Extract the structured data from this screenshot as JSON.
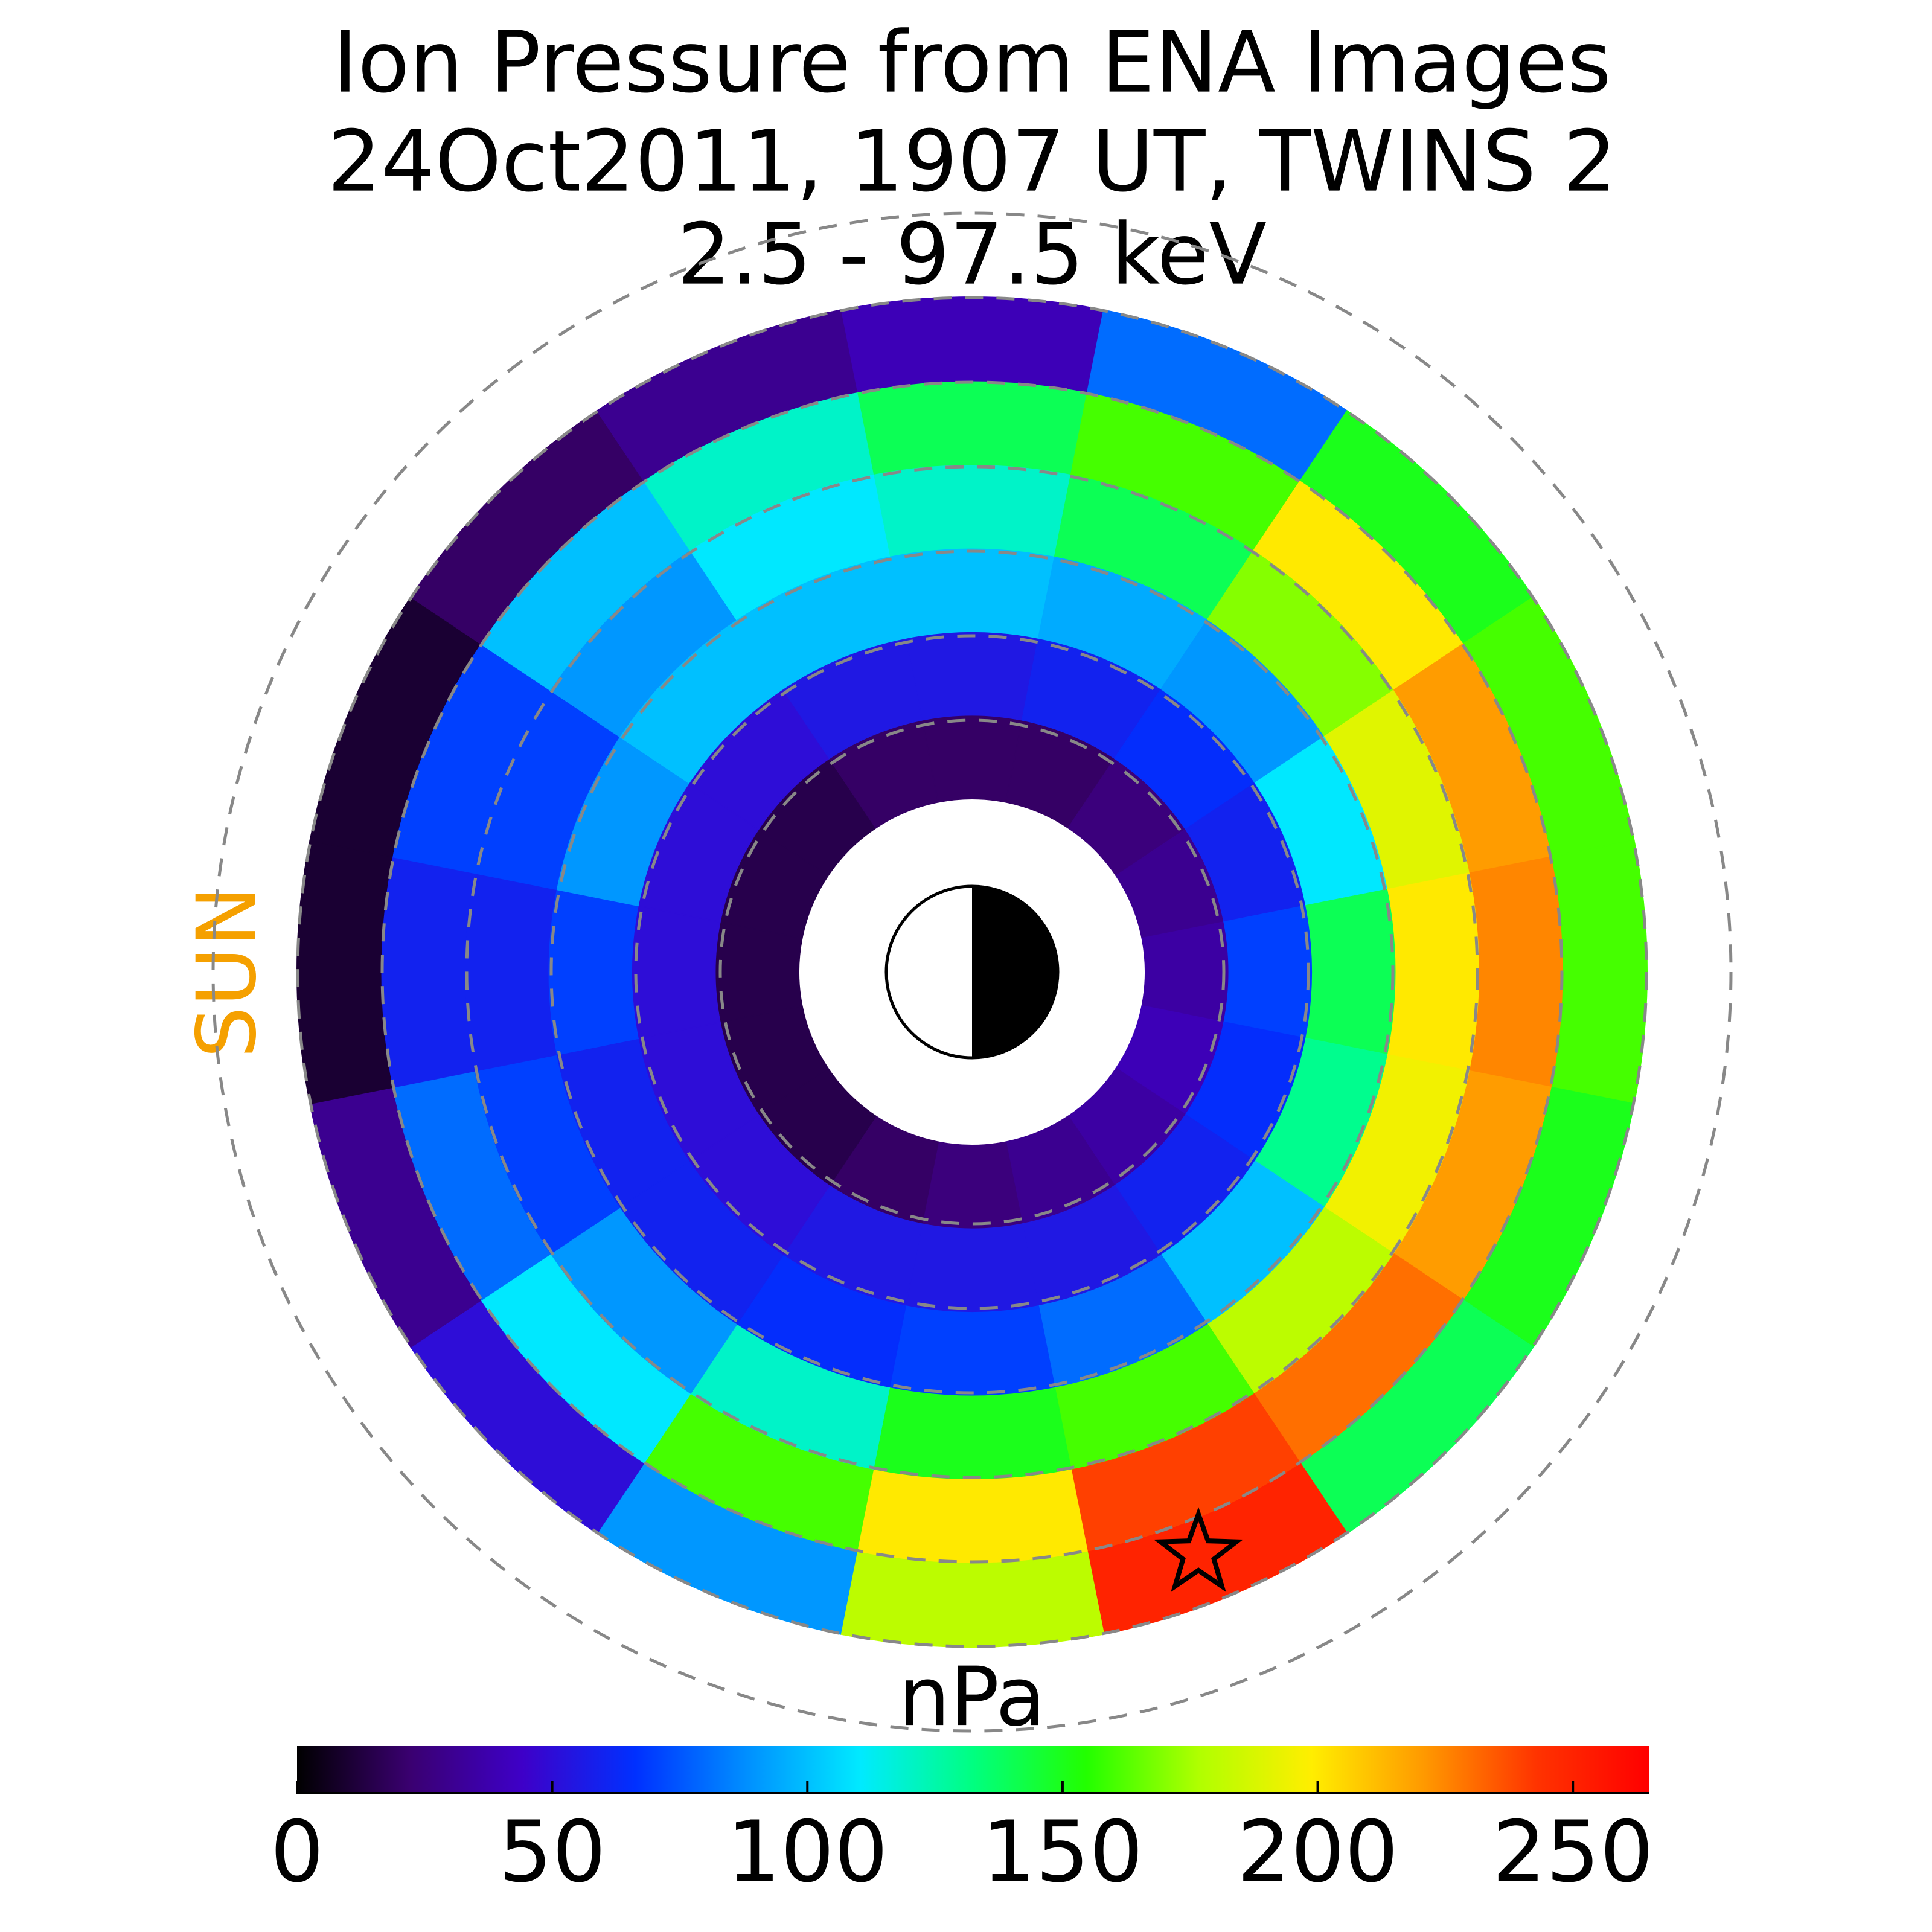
{
  "chart_data": {
    "type": "polar-heatmap",
    "title": [
      "Ion Pressure from  ENA Images",
      "24Oct2011, 1907 UT,  TWINS 2",
      "2.5 - 97.5 keV"
    ],
    "side_label": "SUN",
    "side_label_color": "#f5a000",
    "colorbar_label": "nPa",
    "clim": [
      0,
      265
    ],
    "cticks": [
      0,
      50,
      100,
      150,
      200,
      250
    ],
    "colorscale": [
      "#000000",
      "#3a0070",
      "#3e00c8",
      "#0030ff",
      "#0090ff",
      "#00eaff",
      "#00ff80",
      "#22ff00",
      "#b0ff00",
      "#ffee00",
      "#ff9900",
      "#ff3300",
      "#ff0000"
    ],
    "values": [
      [
        20,
        20,
        25,
        30,
        35,
        40,
        35,
        30,
        25,
        20,
        15,
        15,
        15,
        15,
        15,
        20
      ],
      [
        55,
        60,
        65,
        60,
        70,
        65,
        60,
        55,
        55,
        55,
        50,
        50,
        50,
        50,
        50,
        55
      ],
      [
        100,
        95,
        90,
        110,
        140,
        130,
        100,
        80,
        70,
        65,
        60,
        60,
        70,
        90,
        100,
        100
      ],
      [
        120,
        140,
        170,
        190,
        200,
        195,
        180,
        160,
        150,
        120,
        90,
        70,
        60,
        70,
        90,
        110
      ],
      [
        140,
        160,
        200,
        220,
        225,
        220,
        230,
        240,
        200,
        160,
        110,
        80,
        60,
        70,
        100,
        120
      ],
      [
        40,
        80,
        150,
        160,
        160,
        150,
        140,
        250,
        180,
        90,
        50,
        30,
        10,
        10,
        20,
        30
      ]
    ]
  }
}
